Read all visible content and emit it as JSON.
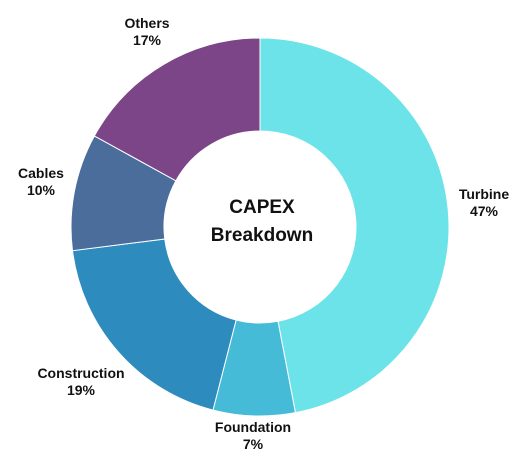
{
  "chart_data": {
    "type": "pie",
    "variant": "donut",
    "center_title": [
      "CAPEX",
      "Breakdown"
    ],
    "slices": [
      {
        "label": "Turbine",
        "value": 47,
        "value_label": "47%",
        "color": "#6BE3E8"
      },
      {
        "label": "Foundation",
        "value": 7,
        "value_label": "7%",
        "color": "#45BBD8"
      },
      {
        "label": "Construction",
        "value": 19,
        "value_label": "19%",
        "color": "#2E8BBE"
      },
      {
        "label": "Cables",
        "value": 10,
        "value_label": "10%",
        "color": "#4A6D9C"
      },
      {
        "label": "Others",
        "value": 17,
        "value_label": "17%",
        "color": "#7C4587"
      }
    ],
    "legend": "none"
  }
}
